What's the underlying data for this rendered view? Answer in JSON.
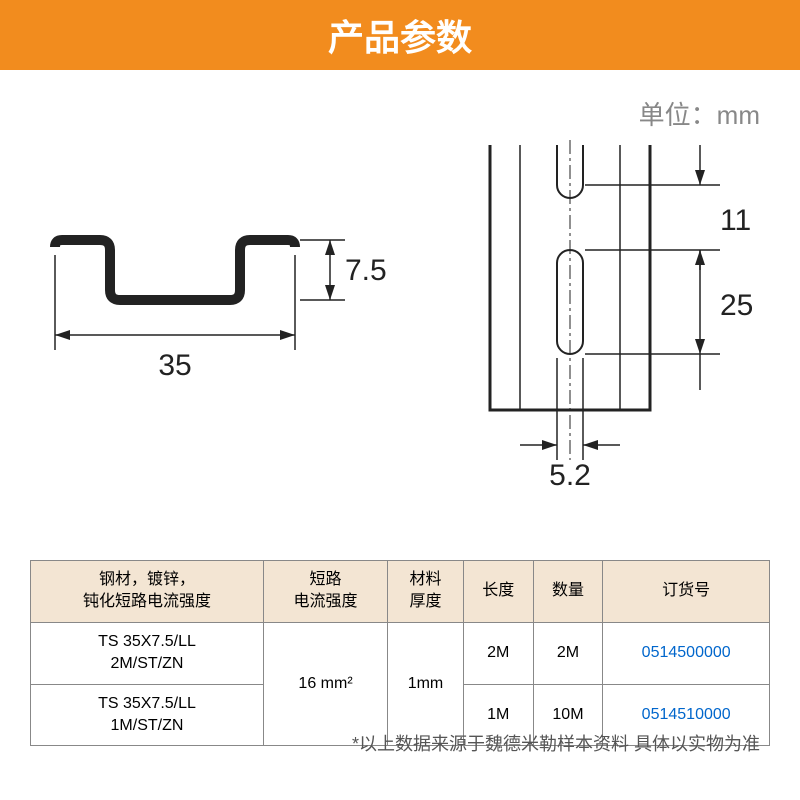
{
  "header": {
    "title": "产品参数",
    "bg_color": "#f28c1e",
    "text_color": "#ffffff"
  },
  "unit_label": "单位：mm",
  "diagram": {
    "left": {
      "width_label": "35",
      "height_label": "7.5"
    },
    "right": {
      "slot_width_label": "5.2",
      "slot_gap_label": "11",
      "slot_length_label": "25"
    },
    "stroke_color": "#222222",
    "dim_color": "#222222",
    "profile_fill": "#222222"
  },
  "table": {
    "header_bg": "#f3e5d3",
    "link_color": "#0066cc",
    "columns": [
      "钢材，镀锌，\n钝化短路电流强度",
      "短路\n电流强度",
      "材料\n厚度",
      "长度",
      "数量",
      "订货号"
    ],
    "shared": {
      "short_circuit": "16 mm²",
      "thickness": "1mm"
    },
    "rows": [
      {
        "model": "TS 35X7.5/LL\n2M/ST/ZN",
        "length": "2M",
        "qty": "2M",
        "order_no": "0514500000"
      },
      {
        "model": "TS 35X7.5/LL\n1M/ST/ZN",
        "length": "1M",
        "qty": "10M",
        "order_no": "0514510000"
      }
    ]
  },
  "footnote": "*以上数据来源于魏德米勒样本资料 具体以实物为准"
}
